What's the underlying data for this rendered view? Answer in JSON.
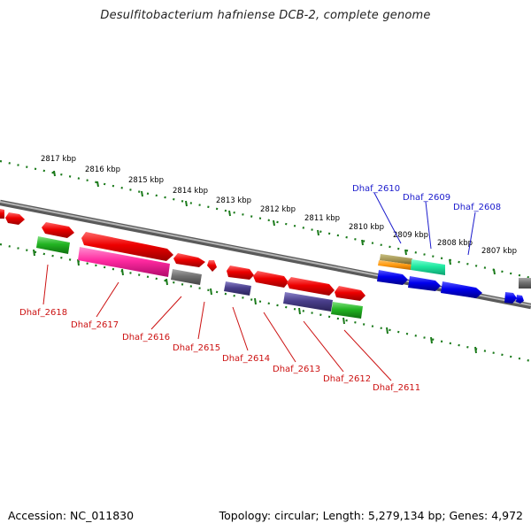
{
  "title": "Desulfitobacterium hafniense DCB-2, complete genome",
  "footer": {
    "accession": "Accession: NC_011830",
    "summary": "Topology: circular; Length: 5,279,134 bp; Genes: 4,972"
  },
  "kbp_labels": [
    "2817 kbp",
    "2816 kbp",
    "2815 kbp",
    "2814 kbp",
    "2813 kbp",
    "2812 kbp",
    "2811 kbp",
    "2810 kbp",
    "2809 kbp",
    "2808 kbp",
    "2807 kbp"
  ],
  "gene_labels_top": [
    "Dhaf_2610",
    "Dhaf_2609",
    "Dhaf_2608"
  ],
  "gene_labels_bottom": [
    "Dhaf_2618",
    "Dhaf_2617",
    "Dhaf_2616",
    "Dhaf_2615",
    "Dhaf_2614",
    "Dhaf_2613",
    "Dhaf_2612",
    "Dhaf_2611"
  ],
  "colors": {
    "top_label": "#1a1acc",
    "bottom_label": "#cc1111",
    "ruler_green": "#1a7a1a",
    "backbone": "#808080"
  }
}
